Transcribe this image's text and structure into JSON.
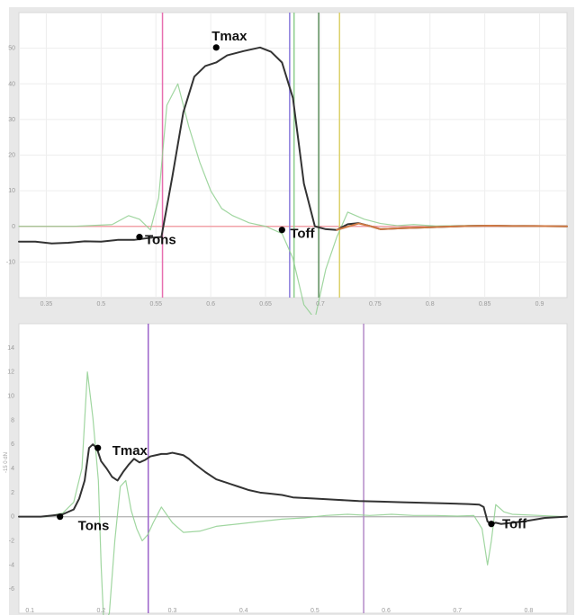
{
  "chart_data": [
    {
      "type": "line",
      "title": "",
      "xlabel": "",
      "ylabel": "",
      "xlim": [
        0,
        100
      ],
      "ylim": [
        -20,
        60
      ],
      "grid": true,
      "ticks": {
        "x": [
          {
            "x": 5,
            "label": "0.35"
          },
          {
            "x": 15,
            "label": "0.5"
          },
          {
            "x": 25,
            "label": "0.55"
          },
          {
            "x": 35,
            "label": "0.6"
          },
          {
            "x": 45,
            "label": "0.65"
          },
          {
            "x": 55,
            "label": "0.7"
          },
          {
            "x": 65,
            "label": "0.75"
          },
          {
            "x": 75,
            "label": "0.8"
          },
          {
            "x": 85,
            "label": "0.85"
          },
          {
            "x": 95,
            "label": "0.9"
          }
        ],
        "y": [
          {
            "y": -10,
            "label": "-10"
          },
          {
            "y": 0,
            "label": "0"
          },
          {
            "y": 10,
            "label": "10"
          },
          {
            "y": 20,
            "label": "20"
          },
          {
            "y": 30,
            "label": "30"
          },
          {
            "y": 40,
            "label": "40"
          },
          {
            "y": 50,
            "label": "50"
          }
        ]
      },
      "series": [
        {
          "color": "#8fcf8f",
          "x": [
            0,
            10,
            17,
            20,
            22,
            24,
            25.5,
            27,
            29,
            31,
            33,
            35,
            37,
            39,
            42,
            45,
            48,
            50,
            52,
            54,
            56,
            58,
            60,
            63,
            66,
            69,
            72,
            76,
            80,
            84,
            88,
            92,
            96,
            100
          ],
          "values": [
            0,
            0,
            0.5,
            3,
            2,
            -1,
            8,
            34,
            40,
            28,
            18,
            10,
            5,
            3,
            1,
            0,
            -2,
            -9,
            -22,
            -26,
            -12,
            -3,
            4,
            2,
            0.8,
            0.2,
            0.5,
            0.1,
            0.2,
            0.3,
            0.1,
            0.2,
            0.1,
            0
          ]
        },
        {
          "color": "#333333",
          "x": [
            0,
            3,
            6,
            9,
            12,
            15,
            18,
            21,
            24,
            26,
            28,
            30,
            32,
            34,
            36,
            38,
            41,
            44,
            46,
            48,
            50,
            52,
            54,
            56,
            58,
            60,
            62,
            64,
            66,
            70,
            74,
            78,
            82,
            86,
            90,
            94,
            100
          ],
          "values": [
            -4.3,
            -4.3,
            -4.8,
            -4.6,
            -4.2,
            -4.3,
            -3.8,
            -3.8,
            -3.2,
            -3.0,
            14,
            32,
            42,
            45,
            46,
            48,
            49.2,
            50.2,
            49,
            46,
            36,
            12,
            0,
            -0.8,
            -1.0,
            0.6,
            0.9,
            0.1,
            -0.8,
            -0.5,
            -0.3,
            -0.1,
            0.1,
            0.2,
            0.1,
            0.1,
            0
          ]
        },
        {
          "color": "#d07a45",
          "x": [
            58,
            62,
            64,
            66,
            70,
            74,
            78,
            82,
            86,
            90,
            94,
            100
          ],
          "values": [
            -1.0,
            0.8,
            0.1,
            -0.8,
            -0.5,
            -0.3,
            -0.1,
            0.1,
            0.2,
            0.1,
            0.1,
            0
          ]
        }
      ],
      "vertical_lines": [
        {
          "x": 26.2,
          "color": "#e76fb0"
        },
        {
          "x": 49.4,
          "color": "#8a7bdc"
        },
        {
          "x": 50.2,
          "color": "#8fcf8f"
        },
        {
          "x": 54.7,
          "color": "#5b8d5b"
        },
        {
          "x": 58.5,
          "color": "#dcd16a"
        }
      ],
      "baseline": {
        "y": 0,
        "color": "#f2a2a8"
      },
      "annotations": [
        {
          "text": "Tmax",
          "x": 36,
          "y": 50.2
        },
        {
          "text": "Tons",
          "x": 22,
          "y": -3.0
        },
        {
          "text": "Toff",
          "x": 48,
          "y": -1.0
        }
      ]
    },
    {
      "type": "line",
      "title": "",
      "xlabel": "",
      "ylabel": "-15 0 dN",
      "xlim": [
        0,
        100
      ],
      "ylim": [
        -8,
        16
      ],
      "grid": false,
      "ticks": {
        "x": [
          {
            "x": 2,
            "label": "0.1"
          },
          {
            "x": 15,
            "label": "0.2"
          },
          {
            "x": 28,
            "label": "0.3"
          },
          {
            "x": 41,
            "label": "0.4"
          },
          {
            "x": 54,
            "label": "0.5"
          },
          {
            "x": 67,
            "label": "0.6"
          },
          {
            "x": 80,
            "label": "0.7"
          },
          {
            "x": 93,
            "label": "0.8"
          }
        ],
        "y": [
          {
            "y": 14,
            "label": "14"
          },
          {
            "y": 12,
            "label": "12"
          },
          {
            "y": 10,
            "label": "10"
          },
          {
            "y": 8,
            "label": "8"
          },
          {
            "y": 6,
            "label": "6"
          },
          {
            "y": 4,
            "label": "4"
          },
          {
            "y": 2,
            "label": "2"
          },
          {
            "y": 0,
            "label": "0"
          },
          {
            "y": -2,
            "label": "-2"
          },
          {
            "y": -4,
            "label": "-4"
          },
          {
            "y": -6,
            "label": "-6"
          }
        ]
      },
      "series": [
        {
          "color": "#8fcf8f",
          "x": [
            0,
            5,
            8,
            10,
            11.5,
            12.5,
            13.5,
            14.5,
            15,
            15.5,
            16.5,
            17.5,
            18.5,
            19.5,
            20.5,
            21.5,
            22.5,
            23.5,
            24.5,
            26,
            28,
            30,
            33,
            36,
            40,
            44,
            48,
            52,
            56,
            60,
            64,
            68,
            72,
            76,
            80,
            83,
            84.5,
            85.5,
            86.2,
            87,
            88.5,
            90,
            95,
            100
          ],
          "values": [
            0,
            0,
            0.3,
            1.2,
            4,
            12,
            8.2,
            3,
            -4,
            -9,
            -8,
            -2,
            2.5,
            3,
            0.5,
            -1,
            -2,
            -1.5,
            -0.5,
            0.8,
            -0.5,
            -1.3,
            -1.2,
            -0.8,
            -0.6,
            -0.4,
            -0.2,
            -0.1,
            0.1,
            0.2,
            0.1,
            0.2,
            0.1,
            0.1,
            0.05,
            0.1,
            -1,
            -4,
            -2,
            1,
            0.4,
            0.2,
            0.1,
            0
          ]
        },
        {
          "color": "#333333",
          "x": [
            0,
            4,
            6,
            8,
            10,
            11,
            12,
            12.8,
            13.5,
            14.2,
            15,
            16,
            17,
            18,
            19,
            20,
            21,
            22,
            23,
            24,
            25,
            26,
            27,
            28,
            29,
            30,
            31,
            32,
            34,
            36,
            38,
            40,
            42,
            44,
            46,
            48,
            50,
            54,
            58,
            62,
            66,
            70,
            74,
            78,
            82,
            84,
            84.8,
            85.5,
            86.2,
            87,
            88,
            92,
            96,
            100
          ],
          "values": [
            0,
            0,
            0.1,
            0.2,
            0.6,
            1.5,
            3,
            5.7,
            6,
            5.7,
            4.6,
            4,
            3.3,
            3,
            3.7,
            4.3,
            4.8,
            4.5,
            4.7,
            5,
            5.1,
            5.2,
            5.2,
            5.3,
            5.2,
            5.1,
            4.8,
            4.4,
            3.7,
            3.1,
            2.8,
            2.5,
            2.2,
            2.0,
            1.9,
            1.8,
            1.6,
            1.5,
            1.4,
            1.3,
            1.25,
            1.2,
            1.15,
            1.1,
            1.05,
            1,
            0.8,
            -0.4,
            -0.6,
            -0.5,
            -0.6,
            -0.4,
            -0.1,
            0
          ]
        }
      ],
      "vertical_lines": [
        {
          "x": 23.6,
          "color": "#9b63c9"
        },
        {
          "x": 62.9,
          "color": "#b48ac8"
        }
      ],
      "baseline": {
        "y": 0,
        "color": "#b8b8b8"
      },
      "annotations": [
        {
          "text": "Tmax",
          "x": 14.4,
          "y": 5.7
        },
        {
          "text": "Tons",
          "x": 7.5,
          "y": 0
        },
        {
          "text": "Toff",
          "x": 86.2,
          "y": -0.6
        }
      ]
    }
  ]
}
